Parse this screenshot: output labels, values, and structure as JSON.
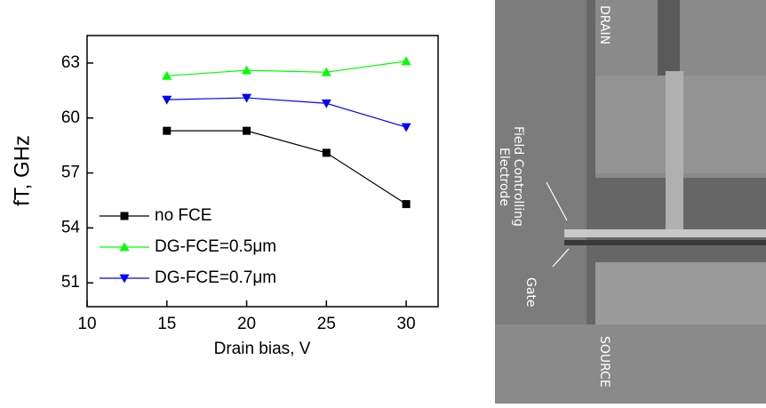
{
  "chart_data": {
    "type": "line",
    "x": [
      15,
      20,
      25,
      30
    ],
    "xlim": [
      10,
      32
    ],
    "xticks": [
      10,
      15,
      20,
      25,
      30
    ],
    "ylim": [
      49.7,
      64.5
    ],
    "yticks": [
      51,
      54,
      57,
      60,
      63
    ],
    "x_label": "Drain bias, V",
    "y_label": "fT, GHz",
    "legend": "lower left",
    "series": [
      {
        "name": "no FCE",
        "color": "#000000",
        "marker": "square",
        "values": [
          59.3,
          59.3,
          58.1,
          55.3
        ]
      },
      {
        "name": "DG-FCE=0.5μm",
        "color": "#00ff00",
        "marker": "triangle-up",
        "values": [
          62.3,
          62.6,
          62.5,
          63.1
        ]
      },
      {
        "name": "DG-FCE=0.7μm",
        "color": "#0000ff",
        "marker": "triangle-down",
        "values": [
          61.0,
          61.1,
          60.8,
          59.5
        ]
      }
    ]
  },
  "micrograph": {
    "labels": {
      "drain": "DRAIN",
      "fce_line1": "Field Controlling",
      "fce_line2": "Electrode",
      "gate": "Gate",
      "source": "SOURCE"
    }
  }
}
